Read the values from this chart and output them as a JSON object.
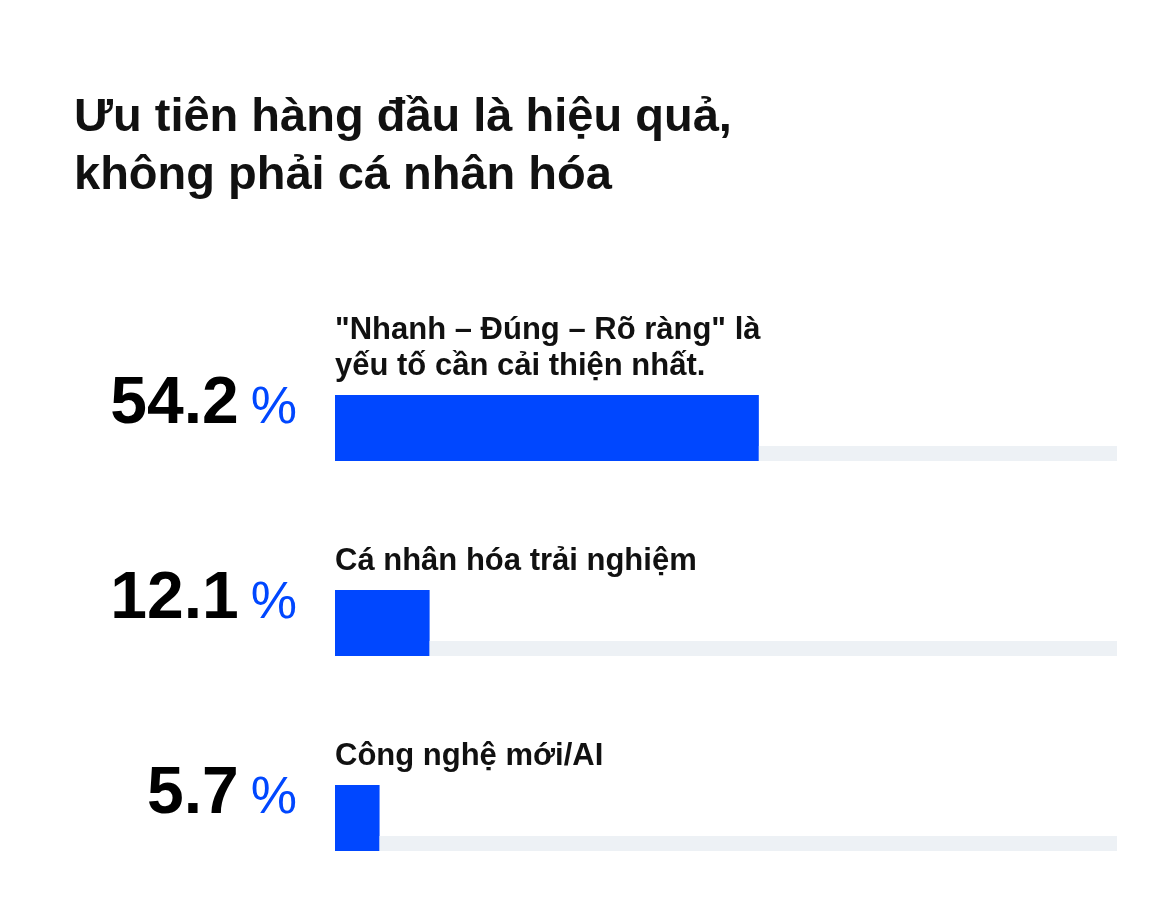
{
  "chart_data": {
    "type": "bar",
    "orientation": "horizontal",
    "stacked": true,
    "title": "Ưu tiên hàng đầu là hiệu quả, không phải cá nhân hóa",
    "categories": [
      "\"Nhanh – Đúng – Rõ ràng\" là yếu tố cần cải thiện nhất.",
      "Cá nhân hóa trải nghiệm",
      "Công nghệ mới/AI"
    ],
    "series": [
      {
        "color": "#0047ff",
        "values": [
          54.2,
          12.1,
          5.7
        ],
        "value_labels": [
          "54.2 %",
          "12.1 %",
          "5.7 %"
        ]
      },
      {
        "color": "#edf1f5",
        "values": [
          45.8,
          87.9,
          94.3
        ]
      }
    ],
    "xlim": [
      0,
      100
    ],
    "tick_labels": "y",
    "grid": false,
    "legend": false
  }
}
